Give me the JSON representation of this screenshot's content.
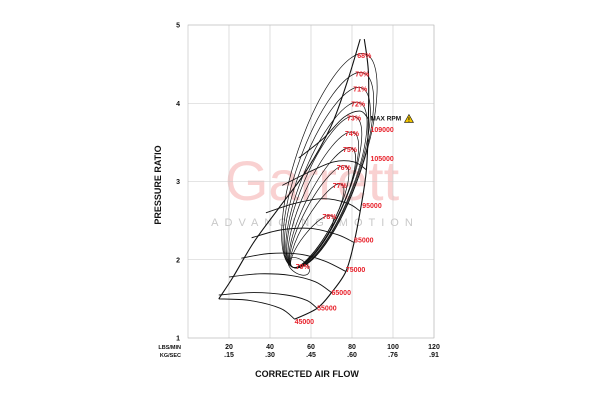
{
  "watermark": {
    "main": "Garrett",
    "sub": "ADVANCING MOTION"
  },
  "chart_data": {
    "type": "line",
    "title": "",
    "xlabel": "CORRECTED AIR FLOW",
    "ylabel": "PRESSURE RATIO",
    "x_unit_primary": "LBS/MIN",
    "x_unit_secondary": "KG/SEC",
    "xlim": [
      0,
      120
    ],
    "ylim": [
      1,
      5
    ],
    "x_ticks": [
      {
        "lbs": "20",
        "kg": ".15",
        "v": 20
      },
      {
        "lbs": "40",
        "kg": ".30",
        "v": 40
      },
      {
        "lbs": "60",
        "kg": ".45",
        "v": 60
      },
      {
        "lbs": "80",
        "kg": ".60",
        "v": 80
      },
      {
        "lbs": "100",
        "kg": ".76",
        "v": 100
      },
      {
        "lbs": "120",
        "kg": ".91",
        "v": 120
      }
    ],
    "y_ticks": [
      "1",
      "2",
      "3",
      "4",
      "5"
    ],
    "grid": true,
    "speed_lines": [
      {
        "label": "45000",
        "points": [
          [
            15,
            1.5
          ],
          [
            30,
            1.48
          ],
          [
            45,
            1.38
          ],
          [
            52,
            1.24
          ]
        ],
        "label_at": [
          52,
          1.22
        ]
      },
      {
        "label": "55000",
        "points": [
          [
            15,
            1.55
          ],
          [
            32,
            1.58
          ],
          [
            48,
            1.55
          ],
          [
            58,
            1.48
          ],
          [
            63,
            1.38
          ]
        ],
        "label_at": [
          63,
          1.39
        ]
      },
      {
        "label": "65000",
        "points": [
          [
            20,
            1.78
          ],
          [
            35,
            1.82
          ],
          [
            50,
            1.8
          ],
          [
            62,
            1.72
          ],
          [
            70,
            1.58
          ]
        ],
        "label_at": [
          70,
          1.59
        ]
      },
      {
        "label": "75000",
        "points": [
          [
            26,
            2.02
          ],
          [
            40,
            2.08
          ],
          [
            55,
            2.07
          ],
          [
            67,
            1.98
          ],
          [
            77,
            1.85
          ]
        ],
        "label_at": [
          77,
          1.88
        ]
      },
      {
        "label": "85000",
        "points": [
          [
            31,
            2.28
          ],
          [
            45,
            2.38
          ],
          [
            60,
            2.4
          ],
          [
            73,
            2.32
          ],
          [
            81,
            2.22
          ]
        ],
        "label_at": [
          81,
          2.26
        ]
      },
      {
        "label": "95000",
        "points": [
          [
            38,
            2.6
          ],
          [
            52,
            2.72
          ],
          [
            66,
            2.78
          ],
          [
            78,
            2.72
          ],
          [
            84,
            2.62
          ]
        ],
        "label_at": [
          85,
          2.7
        ]
      },
      {
        "label": "105000",
        "points": [
          [
            46,
            2.95
          ],
          [
            59,
            3.12
          ],
          [
            71,
            3.25
          ],
          [
            81,
            3.25
          ],
          [
            87,
            3.15
          ]
        ],
        "label_at": [
          89,
          3.3
        ]
      },
      {
        "label": "109000",
        "points": [
          [
            54,
            3.3
          ],
          [
            66,
            3.55
          ],
          [
            76,
            3.82
          ],
          [
            84,
            3.9
          ],
          [
            88,
            3.8
          ]
        ],
        "label_at": [
          89,
          3.67
        ]
      }
    ],
    "efficiency_islands": [
      {
        "label": "68%",
        "label_at": [
          86,
          4.58
        ]
      },
      {
        "label": "70%",
        "label_at": [
          85,
          4.34
        ]
      },
      {
        "label": "71%",
        "label_at": [
          84,
          4.15
        ]
      },
      {
        "label": "72%",
        "label_at": [
          83,
          3.96
        ]
      },
      {
        "label": "73%",
        "label_at": [
          81,
          3.78
        ]
      },
      {
        "label": "74%",
        "label_at": [
          80,
          3.58
        ]
      },
      {
        "label": "75%",
        "label_at": [
          79,
          3.38
        ]
      },
      {
        "label": "76%",
        "label_at": [
          76,
          3.15
        ]
      },
      {
        "label": "77%",
        "label_at": [
          74,
          2.92
        ]
      },
      {
        "label": "78%",
        "label_at": [
          69,
          2.52
        ]
      },
      {
        "label": "79%",
        "label_at": [
          56,
          1.88
        ]
      }
    ],
    "surge_line": [
      [
        15,
        1.5
      ],
      [
        22,
        1.78
      ],
      [
        32,
        2.22
      ],
      [
        44,
        2.65
      ],
      [
        58,
        3.15
      ],
      [
        70,
        3.72
      ],
      [
        78,
        4.3
      ],
      [
        84,
        4.82
      ]
    ],
    "choke_line": [
      [
        52,
        1.24
      ],
      [
        63,
        1.38
      ],
      [
        70,
        1.58
      ],
      [
        77,
        1.85
      ],
      [
        81,
        2.22
      ],
      [
        84,
        2.62
      ],
      [
        87,
        3.15
      ],
      [
        88,
        3.8
      ],
      [
        88,
        4.4
      ],
      [
        86,
        4.82
      ]
    ],
    "max_rpm": {
      "label": "MAX RPM",
      "icon": "warning-icon",
      "label_at": [
        89,
        3.78
      ]
    }
  }
}
